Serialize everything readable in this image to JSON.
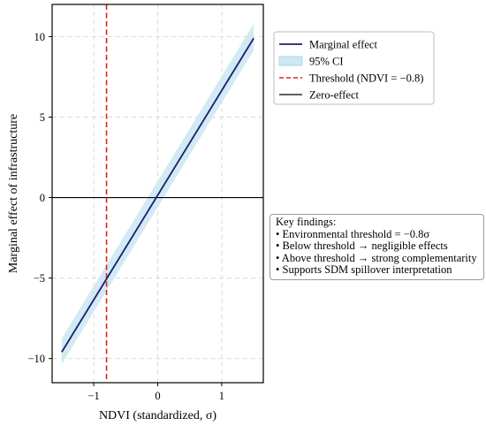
{
  "chart_data": {
    "type": "line",
    "title": "",
    "xlabel": "NDVI (standardized, σ)",
    "ylabel": "Marginal effect of infrastructure",
    "xlim": [
      -1.65,
      1.65
    ],
    "ylim": [
      -11.5,
      12
    ],
    "xticks": [
      -1,
      0,
      1
    ],
    "xtick_labels": [
      "−1",
      "0",
      "1"
    ],
    "yticks": [
      -10,
      -5,
      0,
      5,
      10
    ],
    "ytick_labels": [
      "−10",
      "−5",
      "0",
      "5",
      "10"
    ],
    "grid": true,
    "legend_position": "top-right, outside the axes",
    "series": [
      {
        "name": "Marginal effect",
        "kind": "line",
        "color": "#1a1f6e",
        "x": [
          -1.5,
          1.5
        ],
        "y": [
          -9.6,
          9.9
        ]
      },
      {
        "name": "95% CI",
        "kind": "band",
        "color": "#cde8f2",
        "x": [
          -1.5,
          1.5
        ],
        "lower": [
          -10.35,
          9.15
        ],
        "upper": [
          -8.75,
          10.8
        ]
      },
      {
        "name": "Threshold (NDVI = −0.8)",
        "kind": "vline",
        "color": "#e0221b",
        "x": -0.8
      },
      {
        "name": "Zero-effect",
        "kind": "hline",
        "color": "#000000",
        "y": 0
      }
    ],
    "annotation": {
      "lines": [
        "Key findings:",
        "• Environmental threshold = −0.8σ",
        "• Below threshold → negligible effects",
        "• Above threshold → strong complementarity",
        "• Supports SDM spillover interpretation"
      ]
    }
  }
}
